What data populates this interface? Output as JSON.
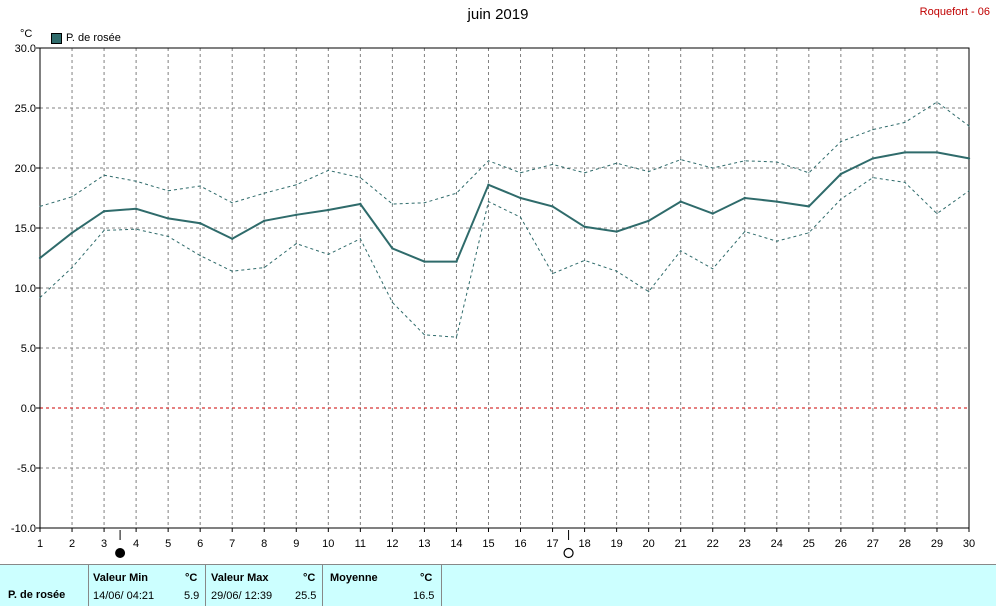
{
  "header": {
    "title": "juin 2019",
    "station": "Roquefort - 06",
    "unit": "°C"
  },
  "legend": {
    "label": "P. de rosée",
    "color": "#2f6b6b"
  },
  "chart_data": {
    "type": "line",
    "x": [
      1,
      2,
      3,
      4,
      5,
      6,
      7,
      8,
      9,
      10,
      11,
      12,
      13,
      14,
      15,
      16,
      17,
      18,
      19,
      20,
      21,
      22,
      23,
      24,
      25,
      26,
      27,
      28,
      29,
      30
    ],
    "ylim": [
      -10,
      30
    ],
    "yticks": [
      "30.0",
      "25.0",
      "20.0",
      "15.0",
      "10.0",
      "5.0",
      "0.0",
      "-5.0",
      "-10.0"
    ],
    "grid": true,
    "legend_position": "top-left",
    "zero_line_color": "#cc0000",
    "series": [
      {
        "name": "P. de rosée",
        "role": "mean",
        "color": "#2f6b6b",
        "values": [
          12.5,
          14.6,
          16.4,
          16.6,
          15.8,
          15.4,
          14.1,
          15.6,
          16.1,
          16.5,
          17.0,
          13.3,
          12.2,
          12.2,
          18.6,
          17.5,
          16.8,
          15.1,
          14.7,
          15.6,
          17.2,
          16.2,
          17.5,
          17.2,
          16.8,
          19.5,
          20.8,
          21.3,
          21.3,
          20.8
        ]
      },
      {
        "role": "max",
        "color": "#2f6b6b",
        "values": [
          16.8,
          17.6,
          19.4,
          18.9,
          18.1,
          18.5,
          17.1,
          17.9,
          18.6,
          19.8,
          19.2,
          17.0,
          17.1,
          17.9,
          20.6,
          19.6,
          20.3,
          19.6,
          20.4,
          19.7,
          20.7,
          20.0,
          20.6,
          20.5,
          19.6,
          22.2,
          23.2,
          23.8,
          25.5,
          23.5
        ]
      },
      {
        "role": "min",
        "color": "#2f6b6b",
        "values": [
          9.2,
          11.7,
          14.8,
          14.9,
          14.3,
          12.7,
          11.4,
          11.7,
          13.7,
          12.8,
          14.1,
          8.8,
          6.1,
          5.9,
          17.2,
          15.9,
          11.2,
          12.3,
          11.4,
          9.7,
          13.1,
          11.6,
          14.7,
          13.9,
          14.6,
          17.4,
          19.2,
          18.8,
          16.2,
          18.1
        ]
      }
    ],
    "moon_markers": [
      {
        "x": 3.5,
        "phase": "new"
      },
      {
        "x": 17.5,
        "phase": "full"
      }
    ]
  },
  "footer": {
    "series_label": "P. de rosée",
    "min_title": "Valeur Min",
    "min_unit": "°C",
    "min_date": "14/06/  04:21",
    "min_value": "5.9",
    "max_title": "Valeur Max",
    "max_unit": "°C",
    "max_date": "29/06/  12:39",
    "max_value": "25.5",
    "mean_title": "Moyenne",
    "mean_unit": "°C",
    "mean_value": "16.5"
  }
}
